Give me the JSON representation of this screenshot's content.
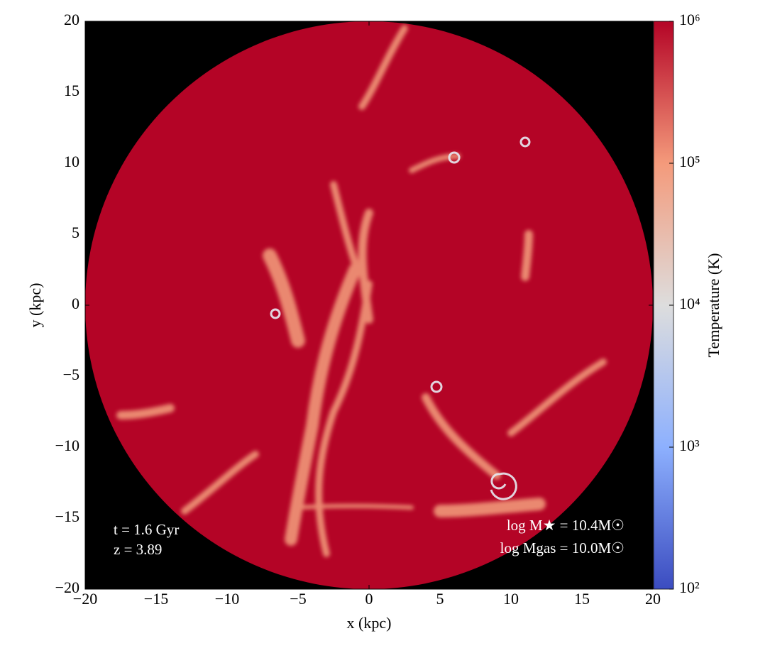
{
  "chart_data": {
    "type": "image",
    "xlabel": "x  (kpc)",
    "ylabel": "y  (kpc)",
    "xlim": [
      -20,
      20
    ],
    "ylim": [
      -20,
      20
    ],
    "xticks": [
      {
        "value": -20,
        "label": "−20"
      },
      {
        "value": -15,
        "label": "−15"
      },
      {
        "value": -10,
        "label": "−10"
      },
      {
        "value": -5,
        "label": "−5"
      },
      0,
      5,
      10,
      15,
      20
    ],
    "yticks": [
      {
        "value": -20,
        "label": "−20"
      },
      {
        "value": -15,
        "label": "−15"
      },
      {
        "value": -10,
        "label": "−10"
      },
      {
        "value": -5,
        "label": "−5"
      },
      0,
      5,
      10,
      15,
      20
    ],
    "background": "#000000",
    "colorbar": {
      "label": "Temperature  (K)",
      "scale": "log",
      "lim": [
        100,
        1000000
      ],
      "ticks": [
        {
          "value": 100,
          "label": "10²"
        },
        {
          "value": 1000,
          "label": "10³"
        },
        {
          "value": 10000,
          "label": "10⁴"
        },
        {
          "value": 100000,
          "label": "10⁵"
        },
        {
          "value": 1000000,
          "label": "10⁶"
        }
      ],
      "colors": [
        "#3b4cc0",
        "#8db0fe",
        "#dddddd",
        "#f49a7b",
        "#b40426"
      ]
    },
    "annotations": [
      "t = 1.6 Gyr",
      "z = 3.89",
      "log M★ = 10.4M☉",
      "log Mgas = 10.0M☉"
    ]
  }
}
